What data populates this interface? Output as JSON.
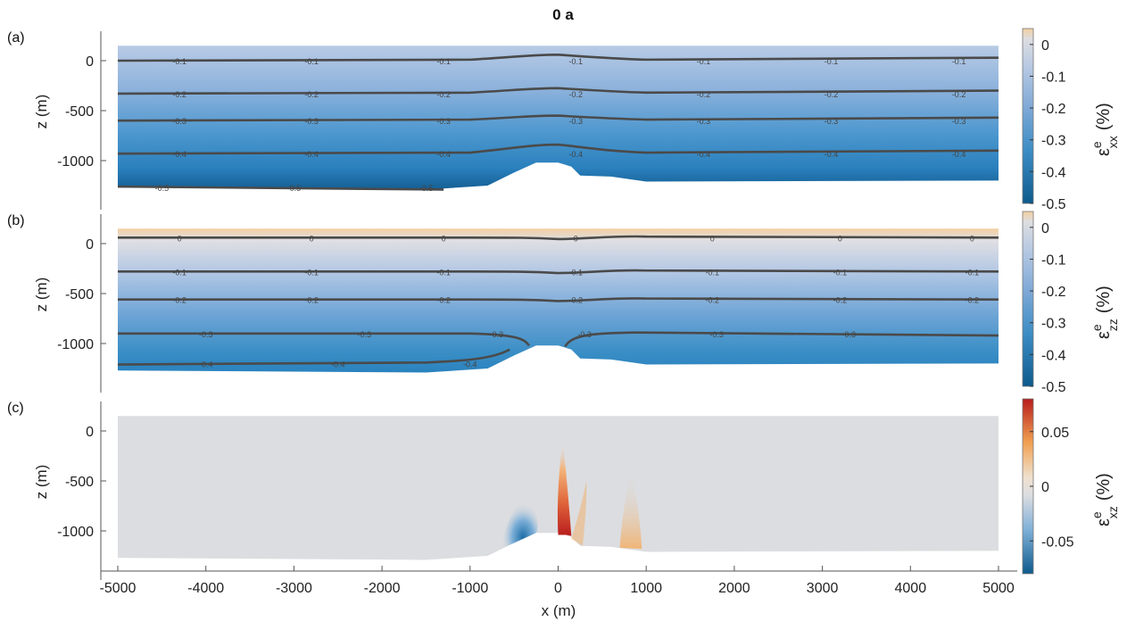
{
  "title": "0 a",
  "xlabel": "x (m)",
  "x_ticks": [
    "-5000",
    "-4000",
    "-3000",
    "-2000",
    "-1000",
    "0",
    "1000",
    "2000",
    "3000",
    "4000",
    "5000"
  ],
  "colors": {
    "negative_deep": "#0d5a8c",
    "negative_mid": "#2f8ac4",
    "negative_light": "#8fb3da",
    "neutral": "#dcdde0",
    "positive_light": "#f2cfa0",
    "positive_mid": "#f0a050",
    "positive_deep": "#b81d1d",
    "contour_line": "#4a4a4a"
  },
  "chart_data": [
    {
      "type": "heatmap",
      "panel_label": "(a)",
      "ylabel": "z (m)",
      "y_ticks": [
        "0",
        "-500",
        "-1000"
      ],
      "xlim": [
        -5000,
        5000
      ],
      "ylim": [
        -1300,
        150
      ],
      "colorbar": {
        "symbol": "ε",
        "sup": "e",
        "sub": "xx",
        "unit": "(%)",
        "ticks": [
          "0",
          "-0.1",
          "-0.2",
          "-0.3",
          "-0.4",
          "-0.5"
        ],
        "range": [
          -0.5,
          0.05
        ]
      },
      "contours": [
        {
          "level": "-0.1",
          "labels_x": [
            -4300,
            -2800,
            -1300,
            200,
            1650,
            3100,
            4550
          ]
        },
        {
          "level": "-0.2",
          "labels_x": [
            -4300,
            -2800,
            -1300,
            200,
            1650,
            3100,
            4550
          ]
        },
        {
          "level": "-0.3",
          "labels_x": [
            -4300,
            -2800,
            -1300,
            200,
            1650,
            3100,
            4550
          ]
        },
        {
          "level": "-0.4",
          "labels_x": [
            -4300,
            -2800,
            -1300,
            200,
            1650,
            3100,
            4550
          ]
        },
        {
          "level": "-0.5",
          "labels_x": [
            -4500,
            -3000,
            -1500
          ]
        }
      ]
    },
    {
      "type": "heatmap",
      "panel_label": "(b)",
      "ylabel": "z (m)",
      "y_ticks": [
        "0",
        "-500",
        "-1000"
      ],
      "xlim": [
        -5000,
        5000
      ],
      "ylim": [
        -1300,
        150
      ],
      "colorbar": {
        "symbol": "ε",
        "sup": "e",
        "sub": "zz",
        "unit": "(%)",
        "ticks": [
          "0",
          "-0.1",
          "-0.2",
          "-0.3",
          "-0.4",
          "-0.5"
        ],
        "range": [
          -0.5,
          0.05
        ]
      },
      "contours": [
        {
          "level": "0",
          "labels_x": [
            -4300,
            -2800,
            -1300,
            200,
            1750,
            3200,
            4700
          ]
        },
        {
          "level": "-0.1",
          "labels_x": [
            -4300,
            -2800,
            -1300,
            200,
            1750,
            3200,
            4700
          ]
        },
        {
          "level": "-0.2",
          "labels_x": [
            -4300,
            -2800,
            -1300,
            200,
            1750,
            3200,
            4700
          ]
        },
        {
          "level": "-0.3",
          "labels_x": [
            -4000,
            -2200,
            -700,
            300,
            1800,
            3300
          ]
        },
        {
          "level": "-0.4",
          "labels_x": [
            -4000,
            -2500,
            -1000
          ]
        }
      ]
    },
    {
      "type": "heatmap",
      "panel_label": "(c)",
      "ylabel": "z (m)",
      "y_ticks": [
        "0",
        "-500",
        "-1000"
      ],
      "xlim": [
        -5000,
        5000
      ],
      "ylim": [
        -1300,
        150
      ],
      "colorbar": {
        "symbol": "ε",
        "sup": "e",
        "sub": "xz",
        "unit": "(%)",
        "ticks": [
          "0.05",
          "0",
          "-0.05"
        ],
        "range": [
          -0.08,
          0.08
        ]
      },
      "contours": []
    }
  ]
}
